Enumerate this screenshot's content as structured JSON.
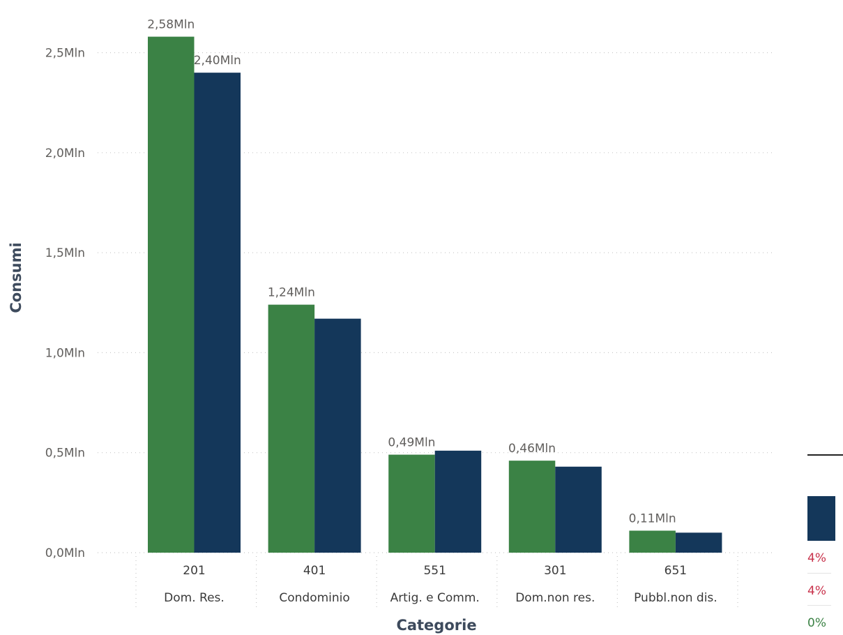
{
  "chart_data": {
    "type": "bar",
    "xlabel": "Categorie",
    "ylabel": "Consumi",
    "ylim": [
      0,
      2.75
    ],
    "yticks": [
      "0,0Mln",
      "0,5Mln",
      "1,0Mln",
      "1,5Mln",
      "2,0Mln",
      "2,5Mln"
    ],
    "categories": [
      {
        "code": "201",
        "name": "Dom. Res."
      },
      {
        "code": "401",
        "name": "Condominio"
      },
      {
        "code": "551",
        "name": "Artig. e Comm."
      },
      {
        "code": "301",
        "name": "Dom.non res."
      },
      {
        "code": "651",
        "name": "Pubbl.non dis."
      }
    ],
    "series": [
      {
        "color": "#3b8245",
        "values": [
          2.58,
          1.24,
          0.49,
          0.46,
          0.11
        ],
        "labels": [
          "2,58Mln",
          "1,24Mln",
          "0,49Mln",
          "0,46Mln",
          "0,11Mln"
        ]
      },
      {
        "color": "#14375a",
        "values": [
          2.4,
          1.17,
          0.51,
          0.43,
          0.1
        ],
        "labels": [
          "2,40Mln",
          "",
          "",
          "",
          ""
        ]
      }
    ],
    "grid": true,
    "legend": "none"
  },
  "side_panel": {
    "box_color": "#14375a",
    "items": [
      {
        "text": "4%",
        "color": "#c8324b"
      },
      {
        "text": "4%",
        "color": "#c8324b"
      },
      {
        "text": "0%",
        "color": "#3b8245"
      }
    ]
  }
}
